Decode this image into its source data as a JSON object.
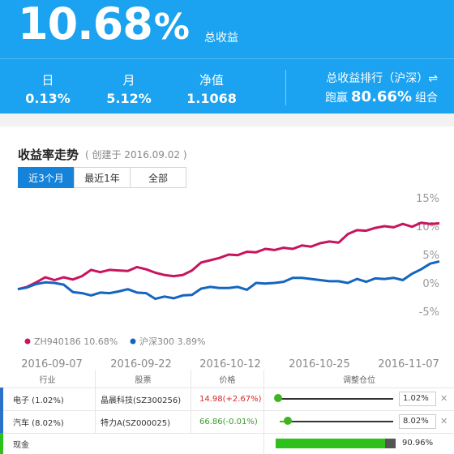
{
  "header": {
    "total_return_value": "10.68",
    "total_return_unit": "%",
    "total_return_label": "总收益",
    "stats": [
      {
        "label": "日",
        "value": "0.13%"
      },
      {
        "label": "月",
        "value": "5.12%"
      },
      {
        "label": "净值",
        "value": "1.1068"
      }
    ],
    "rank_title": "总收益排行（沪深）⇌",
    "rank_prefix": "跑赢",
    "rank_value": "80.66%",
    "rank_suffix": "组合"
  },
  "chart_section": {
    "title": "收益率走势",
    "subtitle": "( 创建于 2016.09.02 )",
    "tabs": [
      {
        "label": "近3个月",
        "active": true
      },
      {
        "label": "最近1年",
        "active": false
      },
      {
        "label": "全部",
        "active": false
      }
    ]
  },
  "chart_data": {
    "type": "line",
    "ylim": [
      -5,
      15
    ],
    "yticks": [
      "15%",
      "10%",
      "5%",
      "0%",
      "-5%"
    ],
    "yticks_values": [
      15,
      10,
      5,
      0,
      -5
    ],
    "x_tick_labels": [
      "2016-09-07",
      "2016-09-22",
      "2016-10-12",
      "2016-10-25",
      "2016-11-07"
    ],
    "series": [
      {
        "name": "ZH940186",
        "legend_value": "10.68%",
        "color": "#c8145f",
        "values": [
          -1.1,
          -0.7,
          0.1,
          1.0,
          0.5,
          1.0,
          0.6,
          1.2,
          2.3,
          1.9,
          2.3,
          2.2,
          2.1,
          2.8,
          2.4,
          1.8,
          1.4,
          1.2,
          1.4,
          2.2,
          3.6,
          4.0,
          4.4,
          5.0,
          4.9,
          5.5,
          5.4,
          6.0,
          5.8,
          6.2,
          6.0,
          6.6,
          6.4,
          7.0,
          7.3,
          7.1,
          8.6,
          9.3,
          9.2,
          9.7,
          10.0,
          9.8,
          10.4,
          9.9,
          10.6,
          10.4,
          10.5
        ]
      },
      {
        "name": "沪深300",
        "legend_value": "3.89%",
        "color": "#1565c0",
        "values": [
          -1.1,
          -0.8,
          -0.2,
          0.1,
          0.0,
          -0.3,
          -1.6,
          -1.8,
          -2.2,
          -1.7,
          -1.8,
          -1.5,
          -1.1,
          -1.7,
          -1.8,
          -2.8,
          -2.4,
          -2.7,
          -2.2,
          -2.1,
          -1.0,
          -0.7,
          -0.9,
          -0.9,
          -0.7,
          -1.2,
          0.0,
          -0.1,
          0.0,
          0.2,
          0.9,
          0.9,
          0.7,
          0.5,
          0.3,
          0.3,
          0.0,
          0.7,
          0.2,
          0.8,
          0.7,
          0.9,
          0.5,
          1.6,
          2.4,
          3.4,
          3.8
        ]
      }
    ]
  },
  "table": {
    "headers": [
      "行业",
      "股票",
      "价格",
      "调整仓位"
    ],
    "rows": [
      {
        "industry": "电子 (1.02%)",
        "stock": "晶晨科技(SZ300256)",
        "price": "14.98(+2.67%)",
        "price_color": "#d62828",
        "weight": "1.02%",
        "weight_value": 1.02,
        "accent": "#2a72c8"
      },
      {
        "industry": "汽车 (8.02%)",
        "stock": "特力A(SZ000025)",
        "price": "66.86(-0.01%)",
        "price_color": "#3a9a2a",
        "weight": "8.02%",
        "weight_value": 8.02,
        "accent": "#2a72c8"
      }
    ],
    "cash": {
      "label": "现金",
      "value": "90.96%",
      "value_num": 90.96,
      "accent": "#2fc11b"
    }
  }
}
